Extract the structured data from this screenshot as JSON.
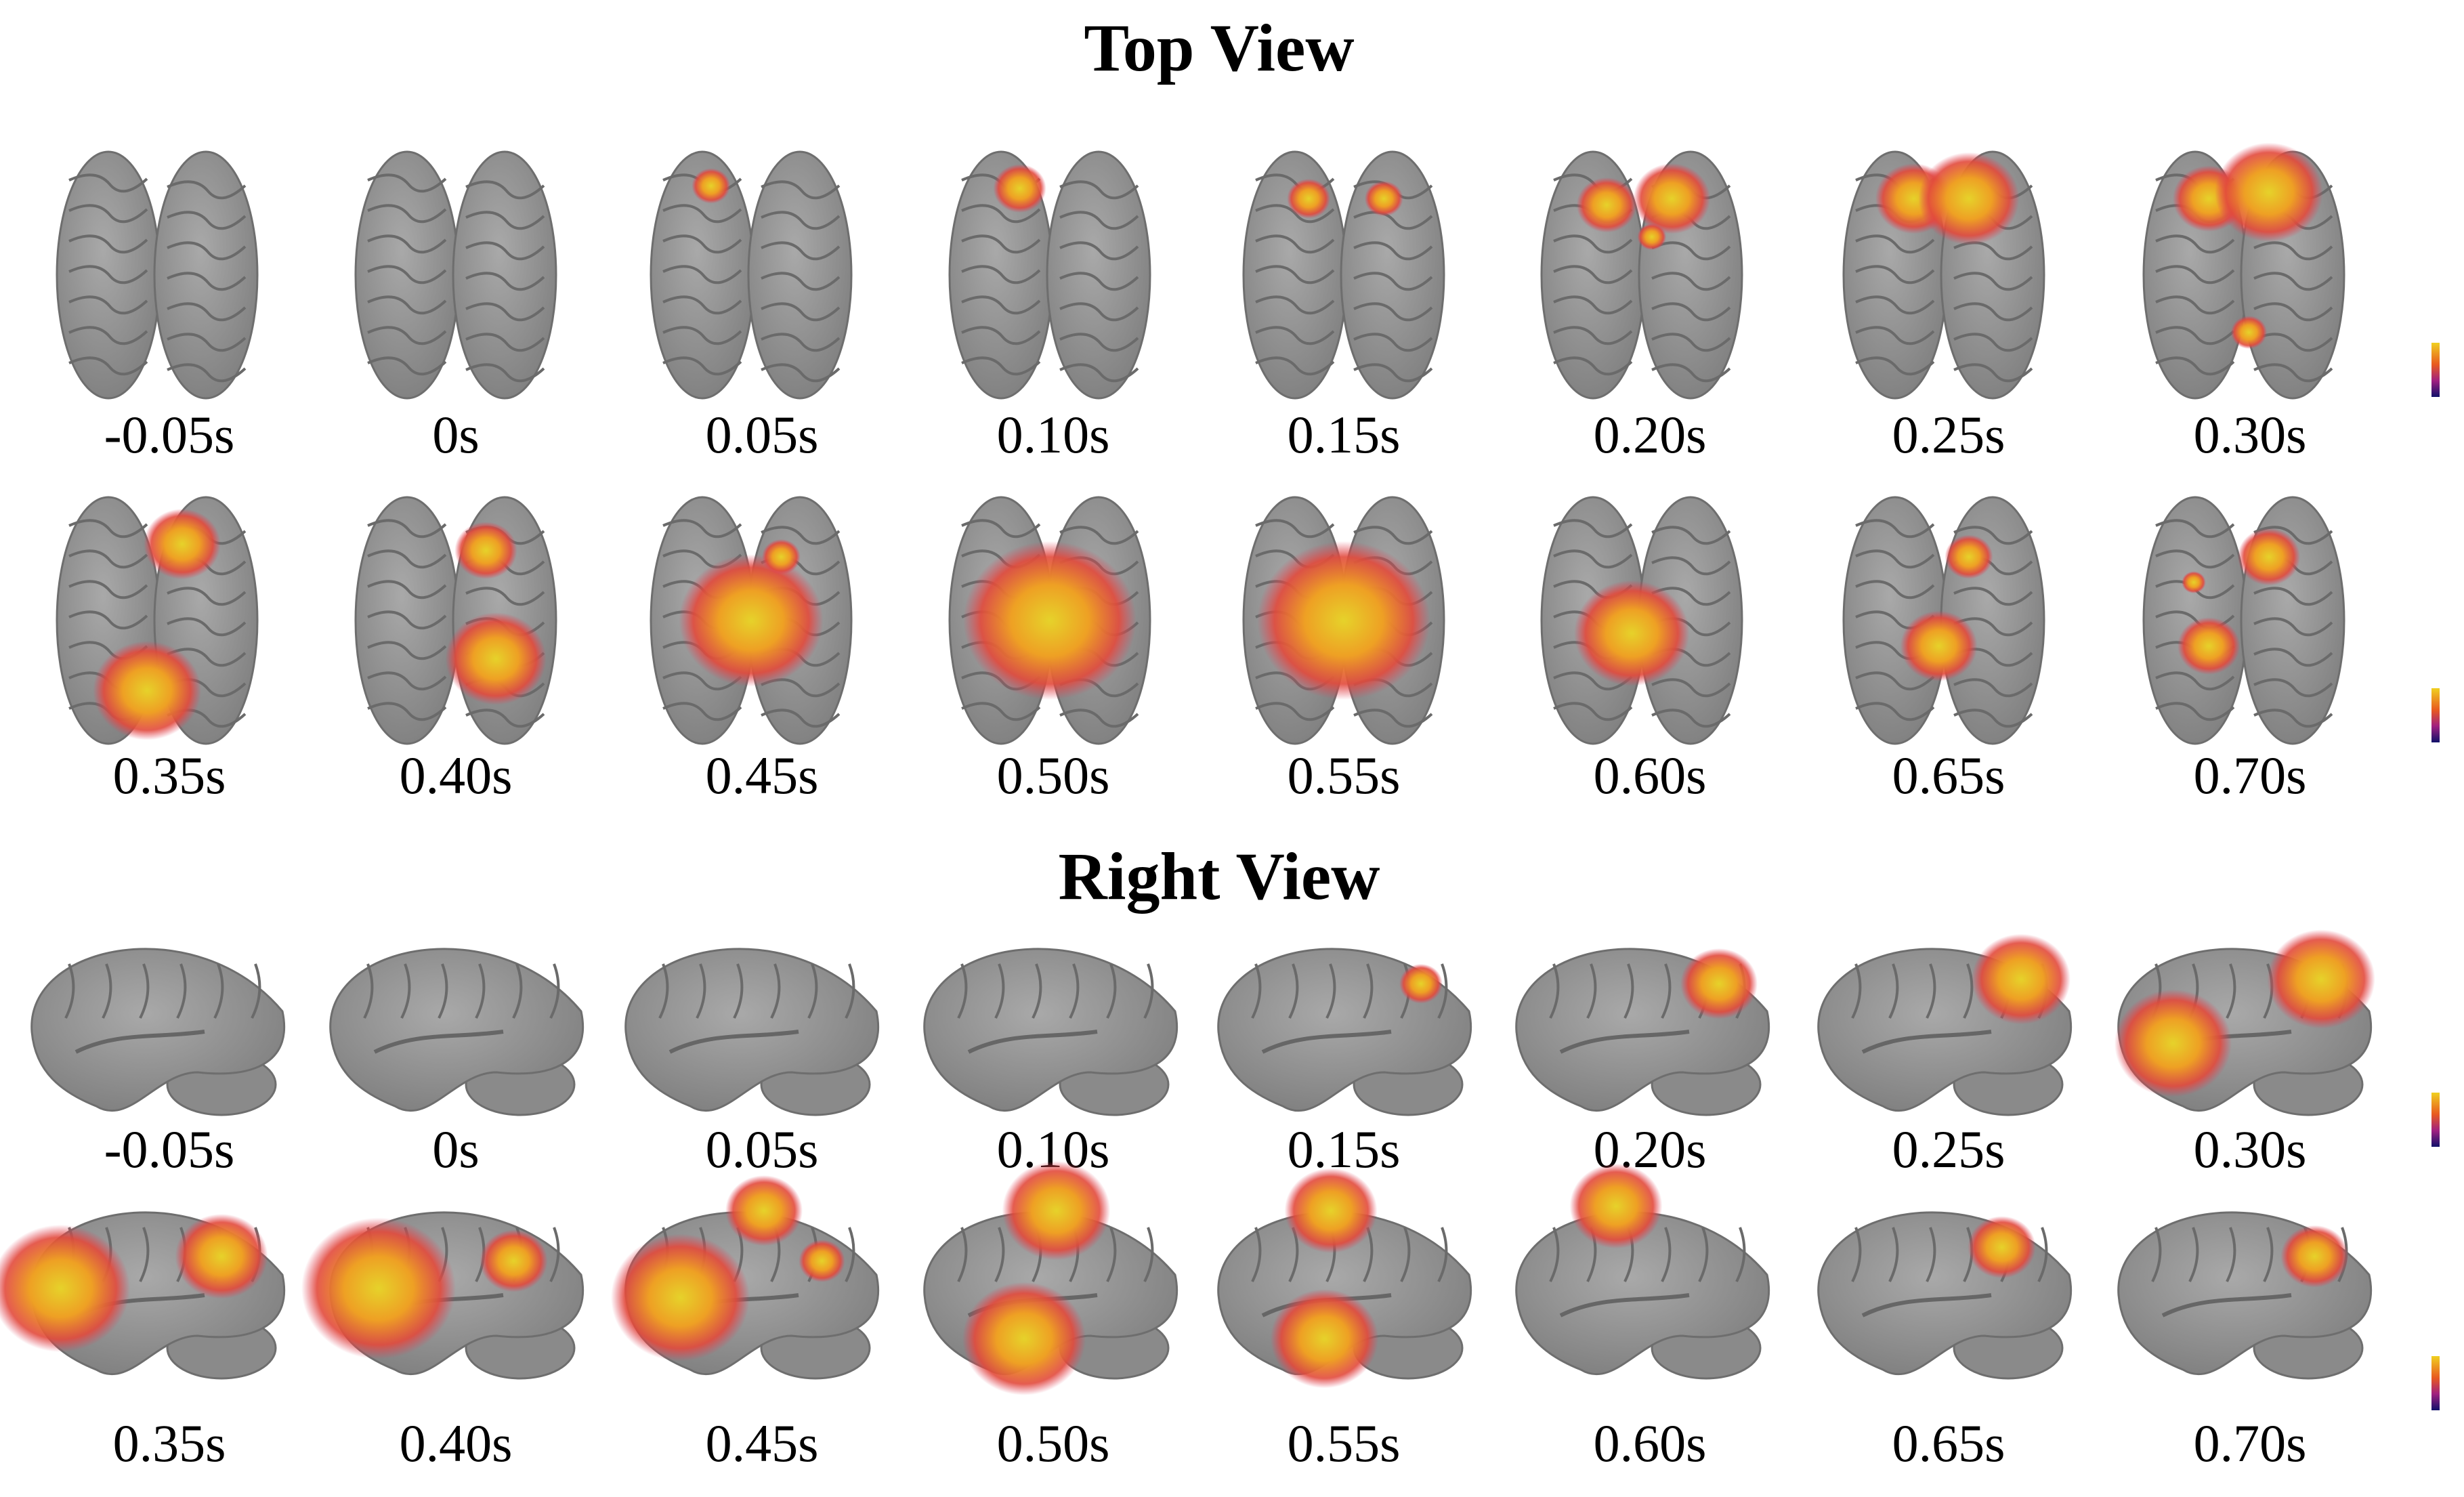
{
  "sections": [
    {
      "title": "Top View",
      "rows": [
        [
          "-0.05s",
          "0s",
          "0.05s",
          "0.10s",
          "0.15s",
          "0.20s",
          "0.25s",
          "0.30s"
        ],
        [
          "0.35s",
          "0.40s",
          "0.45s",
          "0.50s",
          "0.55s",
          "0.60s",
          "0.65s",
          "0.70s"
        ]
      ]
    },
    {
      "title": "Right View",
      "rows": [
        [
          "-0.05s",
          "0s",
          "0.05s",
          "0.10s",
          "0.15s",
          "0.20s",
          "0.25s",
          "0.30s"
        ],
        [
          "0.35s",
          "0.40s",
          "0.45s",
          "0.50s",
          "0.55s",
          "0.60s",
          "0.65s",
          "0.70s"
        ]
      ]
    }
  ]
}
